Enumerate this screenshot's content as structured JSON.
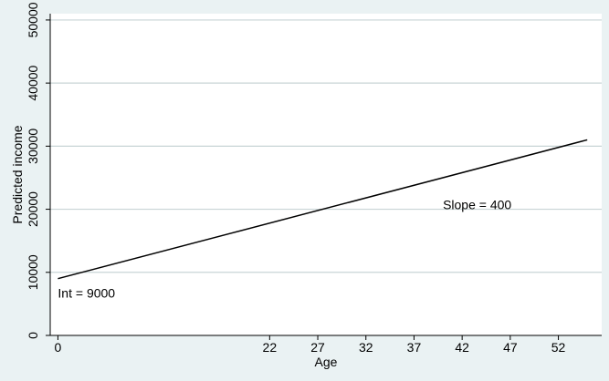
{
  "chart_data": {
    "type": "line",
    "title": "",
    "xlabel": "Age",
    "ylabel": "Predicted income",
    "xlim": [
      -0.8,
      56.5
    ],
    "ylim": [
      0,
      51000
    ],
    "x_ticks": [
      0,
      22,
      27,
      32,
      37,
      42,
      47,
      52
    ],
    "y_ticks": [
      0,
      10000,
      20000,
      30000,
      40000,
      50000
    ],
    "grid": "horizontal",
    "series": [
      {
        "x": [
          0,
          55
        ],
        "y": [
          9000,
          31000
        ]
      }
    ],
    "annotations": [
      {
        "text": "Int = 9000",
        "x": 0,
        "y": 6000
      },
      {
        "text": "Slope = 400",
        "x": 40,
        "y": 20000
      }
    ],
    "colors": {
      "background": "#eaf2f3",
      "plot_area": "#ffffff",
      "line": "#000000",
      "grid": "#c8d4d6"
    }
  }
}
